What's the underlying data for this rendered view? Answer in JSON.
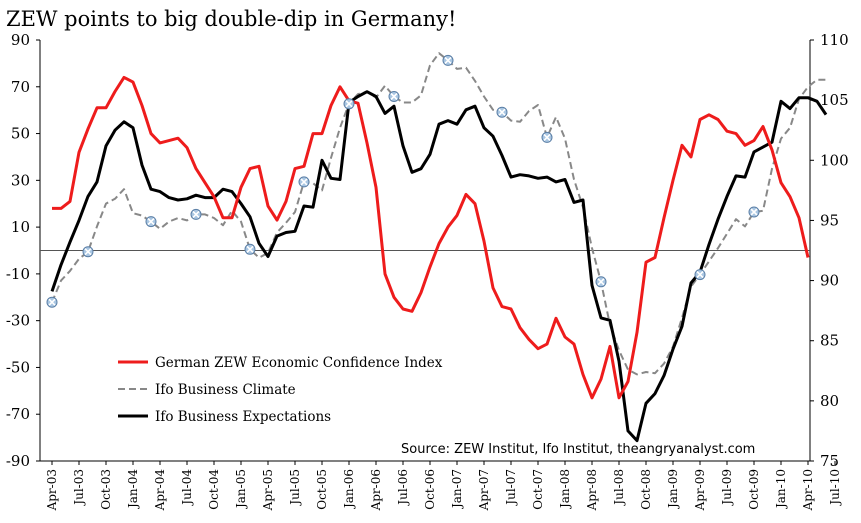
{
  "chart_data": {
    "type": "line",
    "title": "ZEW points to big double-dip in Germany!",
    "source": "Source: ZEW Institut, Ifo Institut, theangryanalyst.com",
    "x_tick_labels": [
      "Apr-03",
      "Jul-03",
      "Oct-03",
      "Jan-04",
      "Apr-04",
      "Jul-04",
      "Oct-04",
      "Jan-05",
      "Apr-05",
      "Jul-05",
      "Oct-05",
      "Jan-06",
      "Apr-06",
      "Jul-06",
      "Oct-06",
      "Jan-07",
      "Apr-07",
      "Jul-07",
      "Oct-07",
      "Jan-08",
      "Apr-08",
      "Jul-08",
      "Oct-08",
      "Jan-09",
      "Apr-09",
      "Jul-09",
      "Oct-09",
      "Jan-10",
      "Apr-10",
      "Jul-10"
    ],
    "left_axis": {
      "ylim": [
        -90,
        90
      ],
      "ticks": [
        90,
        70,
        50,
        30,
        10,
        -10,
        -30,
        -50,
        -70,
        -90
      ]
    },
    "right_axis": {
      "ylim": [
        75,
        110
      ],
      "ticks": [
        110,
        105,
        100,
        95,
        90,
        85,
        80,
        75
      ]
    },
    "zero_line": 0,
    "legend": {
      "position": "bottom-left"
    },
    "series": [
      {
        "name": "German ZEW Economic Confidence Index",
        "axis": "left",
        "color": "#ee1c1c",
        "style": "solid",
        "values": [
          18,
          18,
          21,
          42,
          52,
          61,
          61,
          68,
          74,
          72,
          62,
          50,
          46,
          47,
          48,
          44,
          35,
          29,
          23,
          14,
          14,
          27,
          35,
          36,
          19,
          13,
          21,
          35,
          36,
          50,
          50,
          62,
          70,
          64,
          63,
          46,
          27,
          -10,
          -20,
          -25,
          -26,
          -18,
          -7,
          3,
          10,
          15,
          24,
          20,
          4,
          -16,
          -24,
          -25,
          -33,
          -38,
          -42,
          -40,
          -29,
          -37,
          -40,
          -53,
          -63,
          -55,
          -41,
          -63,
          -56,
          -35,
          -5,
          -3,
          14,
          30,
          45,
          40,
          56,
          58,
          56,
          51,
          50,
          45,
          47,
          53,
          43,
          29,
          23,
          14,
          -3
        ]
      },
      {
        "name": "Ifo Business Climate",
        "axis": "right",
        "color": "#888888",
        "style": "dashed",
        "values": [
          88.2,
          90.0,
          90.8,
          91.8,
          92.4,
          94.5,
          96.4,
          96.8,
          97.6,
          95.6,
          95.4,
          94.9,
          94.3,
          94.9,
          95.2,
          95.0,
          95.5,
          95.5,
          95.2,
          94.6,
          95.8,
          94.9,
          92.6,
          91.9,
          92.3,
          94.0,
          94.8,
          95.7,
          98.2,
          98.1,
          97.5,
          100.2,
          102.7,
          104.7,
          105.5,
          105.7,
          105.2,
          106.2,
          105.3,
          104.8,
          104.8,
          105.4,
          107.9,
          108.9,
          108.3,
          107.6,
          107.7,
          106.6,
          105.3,
          104.2,
          104.0,
          103.3,
          103.2,
          104.1,
          104.6,
          101.9,
          103.6,
          101.8,
          98.4,
          96.1,
          92.7,
          89.9,
          86.3,
          84.2,
          82.6,
          82.2,
          82.4,
          82.3,
          83.1,
          84.5,
          86.9,
          89.5,
          90.5,
          91.6,
          92.7,
          93.9,
          95.1,
          94.5,
          95.7,
          95.8,
          99.3,
          101.8,
          102.7,
          105.1,
          106.1,
          106.7,
          106.7
        ]
      },
      {
        "name": "Ifo Business Expectations",
        "axis": "right",
        "color": "#000000",
        "style": "solid",
        "values": [
          89.1,
          91.3,
          93.2,
          95.0,
          97.0,
          98.2,
          101.2,
          102.5,
          103.2,
          102.7,
          99.6,
          97.6,
          97.4,
          96.9,
          96.7,
          96.8,
          97.1,
          96.9,
          96.9,
          97.6,
          97.4,
          96.4,
          95.3,
          93.1,
          92.0,
          93.7,
          94.0,
          94.1,
          96.2,
          96.1,
          100.0,
          98.5,
          98.4,
          104.8,
          105.3,
          105.7,
          105.3,
          103.9,
          104.5,
          101.2,
          99.0,
          99.3,
          100.5,
          103.0,
          103.3,
          103.0,
          104.2,
          104.5,
          102.7,
          102.0,
          100.4,
          98.6,
          98.8,
          98.7,
          98.5,
          98.6,
          98.2,
          98.4,
          96.5,
          96.7,
          89.6,
          86.9,
          86.7,
          83.3,
          77.5,
          76.7,
          79.8,
          80.6,
          82.1,
          84.3,
          86.2,
          89.8,
          90.7,
          93.0,
          95.1,
          97.0,
          98.7,
          98.6,
          100.7,
          101.1,
          101.5,
          104.9,
          104.3,
          105.2,
          105.2,
          104.9,
          103.8
        ]
      }
    ],
    "markers": [
      {
        "series": "Ifo Business Climate",
        "index": 0
      },
      {
        "series": "Ifo Business Climate",
        "index": 4
      },
      {
        "series": "Ifo Business Climate",
        "index": 11
      },
      {
        "series": "Ifo Business Climate",
        "index": 16
      },
      {
        "series": "Ifo Business Climate",
        "index": 22
      },
      {
        "series": "Ifo Business Climate",
        "index": 28
      },
      {
        "series": "Ifo Business Climate",
        "index": 33
      },
      {
        "series": "Ifo Business Climate",
        "index": 38
      },
      {
        "series": "Ifo Business Climate",
        "index": 44
      },
      {
        "series": "Ifo Business Climate",
        "index": 50
      },
      {
        "series": "Ifo Business Climate",
        "index": 55
      },
      {
        "series": "Ifo Business Climate",
        "index": 61
      },
      {
        "series": "Ifo Business Climate",
        "index": 72
      },
      {
        "series": "Ifo Business Climate",
        "index": 78
      }
    ]
  }
}
